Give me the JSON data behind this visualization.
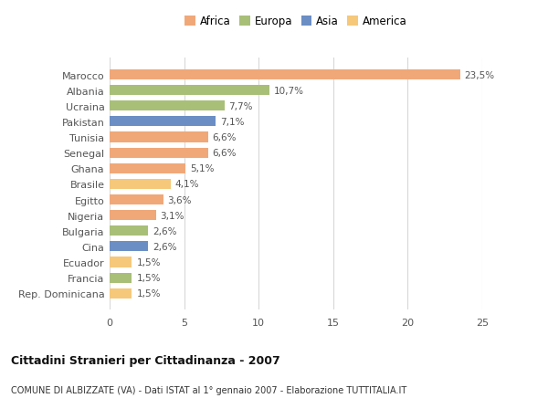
{
  "categories": [
    "Rep. Dominicana",
    "Francia",
    "Ecuador",
    "Cina",
    "Bulgaria",
    "Nigeria",
    "Egitto",
    "Brasile",
    "Ghana",
    "Senegal",
    "Tunisia",
    "Pakistan",
    "Ucraina",
    "Albania",
    "Marocco"
  ],
  "values": [
    1.5,
    1.5,
    1.5,
    2.6,
    2.6,
    3.1,
    3.6,
    4.1,
    5.1,
    6.6,
    6.6,
    7.1,
    7.7,
    10.7,
    23.5
  ],
  "labels": [
    "1,5%",
    "1,5%",
    "1,5%",
    "2,6%",
    "2,6%",
    "3,1%",
    "3,6%",
    "4,1%",
    "5,1%",
    "6,6%",
    "6,6%",
    "7,1%",
    "7,7%",
    "10,7%",
    "23,5%"
  ],
  "colors": [
    "#F5C87A",
    "#A8BF78",
    "#F5C87A",
    "#6B8EC4",
    "#A8BF78",
    "#F0A878",
    "#F0A878",
    "#F5C87A",
    "#F0A878",
    "#F0A878",
    "#F0A878",
    "#6B8EC4",
    "#A8BF78",
    "#A8BF78",
    "#F0A878"
  ],
  "legend_labels": [
    "Africa",
    "Europa",
    "Asia",
    "America"
  ],
  "legend_colors": [
    "#F0A878",
    "#A8BF78",
    "#6B8EC4",
    "#F5C87A"
  ],
  "title": "Cittadini Stranieri per Cittadinanza - 2007",
  "subtitle": "COMUNE DI ALBIZZATE (VA) - Dati ISTAT al 1° gennaio 2007 - Elaborazione TUTTITALIA.IT",
  "xlim": [
    0,
    25
  ],
  "xticks": [
    0,
    5,
    10,
    15,
    20,
    25
  ],
  "bg_color": "#ffffff",
  "grid_color": "#d8d8d8",
  "bar_height": 0.65
}
